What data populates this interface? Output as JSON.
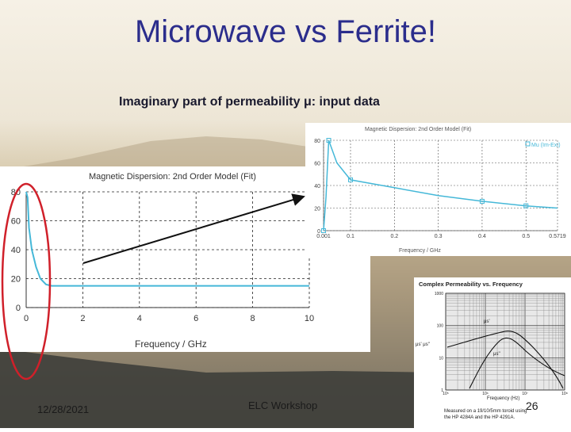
{
  "slide": {
    "title": "Microwave vs Ferrite!",
    "subtitle": "Imaginary part of permeability μ: input data",
    "date": "12/28/2021",
    "event": "ELC Workshop",
    "page": "26"
  },
  "chart_left": {
    "title": "Magnetic Dispersion: 2nd Order Model (Fit)",
    "xlabel": "Frequency / GHz",
    "xticks": [
      "0",
      "2",
      "4",
      "6",
      "8",
      "10"
    ],
    "yticks": [
      "80",
      "60",
      "40",
      "20",
      "0"
    ],
    "ylim": [
      0,
      80
    ],
    "xlim": [
      0,
      10
    ],
    "curve": [
      [
        0,
        80
      ],
      [
        0.05,
        76
      ],
      [
        0.1,
        55
      ],
      [
        0.2,
        40
      ],
      [
        0.35,
        28
      ],
      [
        0.5,
        20
      ],
      [
        0.7,
        16
      ],
      [
        0.9,
        15
      ],
      [
        1.2,
        15
      ],
      [
        10,
        15
      ]
    ]
  },
  "chart_right": {
    "title": "Magnetic Dispersion: 2nd Order Model (Fit)",
    "legend": "Mu (Im-Ext)",
    "xlabel": "Frequency / GHz",
    "xticks": [
      "0.001",
      "0.1",
      "0.2",
      "0.3",
      "0.4",
      "0.5",
      "0.5719"
    ],
    "yticks": [
      "80",
      "60",
      "40",
      "20",
      "0"
    ],
    "ylim": [
      0,
      80
    ],
    "curve": [
      [
        0.001,
        0
      ],
      [
        0.01,
        30
      ],
      [
        0.02,
        80
      ],
      [
        0.05,
        60
      ],
      [
        0.1,
        45
      ],
      [
        0.2,
        38
      ],
      [
        0.3,
        31
      ],
      [
        0.4,
        26
      ],
      [
        0.5,
        22
      ],
      [
        0.5719,
        20
      ]
    ]
  },
  "chart_datasheet": {
    "title": "Complex Permeability vs. Frequency",
    "xlabel": "Frequency (Hz)",
    "ylabel": "μs' μs''",
    "yticks": [
      "1000",
      "100",
      "10",
      "1"
    ],
    "xticks": [
      "10⁵",
      "10⁶",
      "10⁷",
      "10⁸"
    ],
    "series_labels": [
      "μs'",
      "μs''"
    ],
    "note_lines": [
      "Measured on a 19/10/5mm toroid using",
      "the HP 4284A and the HP 4291A."
    ]
  },
  "colors": {
    "title": "#2b2d8c",
    "curve": "#45b8d8",
    "highlight": "#d0202a"
  }
}
